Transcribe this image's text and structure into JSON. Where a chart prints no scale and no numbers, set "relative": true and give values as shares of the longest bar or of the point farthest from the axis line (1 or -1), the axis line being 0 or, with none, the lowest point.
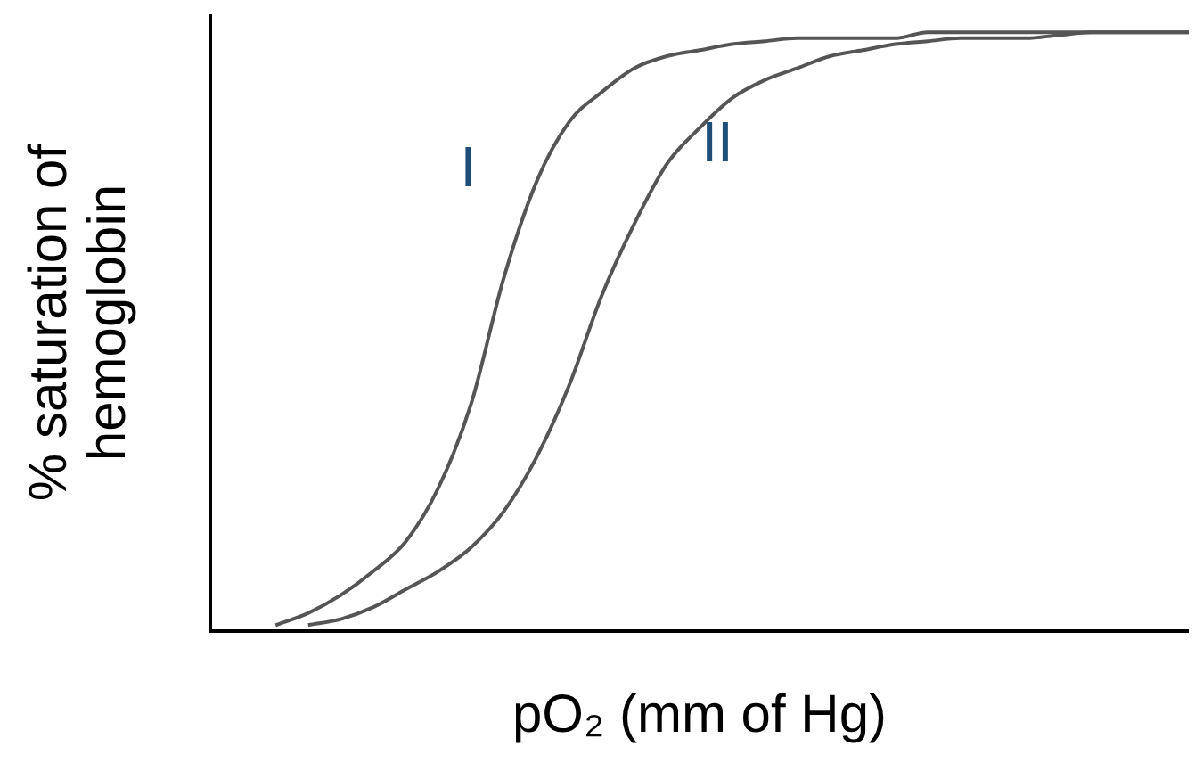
{
  "chart_data": {
    "type": "line",
    "relative": true,
    "xlabel": "pO₂ (mm of Hg)",
    "ylabel": "% saturation of hemoglobin",
    "categories": [
      null,
      null,
      null,
      null,
      null,
      null,
      null,
      null,
      null,
      null,
      null,
      null,
      null,
      null,
      null,
      null,
      null,
      null,
      null,
      null,
      null,
      null,
      null,
      null,
      null,
      null,
      null,
      null,
      null,
      null,
      null
    ],
    "series": [
      {
        "name": "I",
        "color": "#555555",
        "values": [
          null,
          null,
          0.01,
          0.03,
          0.06,
          0.1,
          0.15,
          0.24,
          0.38,
          0.59,
          0.75,
          0.85,
          0.9,
          0.94,
          0.96,
          0.97,
          0.98,
          0.985,
          0.99,
          0.99,
          0.99,
          0.99,
          1.0,
          1.0,
          1.0,
          1.0,
          1.0,
          1.0,
          1.0,
          1.0,
          1.0
        ]
      },
      {
        "name": "II",
        "color": "#555555",
        "values": [
          null,
          null,
          null,
          0.01,
          0.02,
          0.04,
          0.07,
          0.1,
          0.14,
          0.2,
          0.29,
          0.41,
          0.56,
          0.68,
          0.78,
          0.84,
          0.89,
          0.92,
          0.94,
          0.96,
          0.97,
          0.98,
          0.985,
          0.99,
          0.99,
          0.99,
          0.995,
          1.0,
          1.0,
          1.0,
          1.0
        ]
      }
    ],
    "grid": false,
    "legend": false,
    "marker": "none",
    "line_style": "solid"
  }
}
